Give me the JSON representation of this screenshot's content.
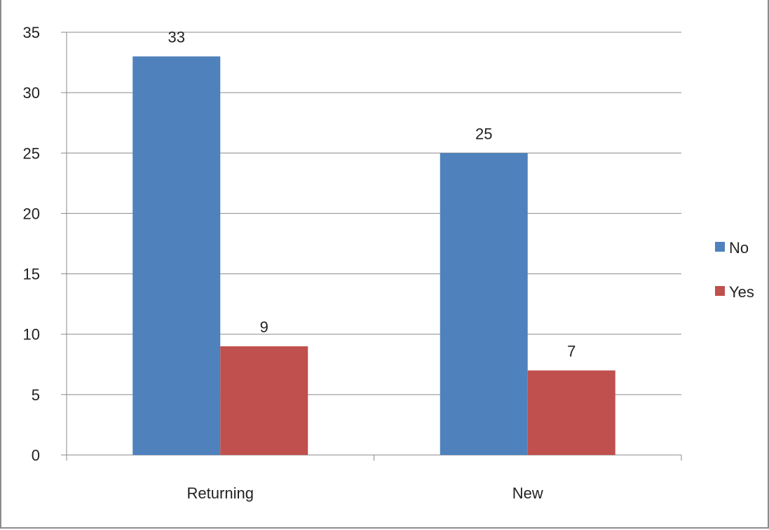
{
  "chart_data": {
    "type": "bar",
    "title": "",
    "xlabel": "",
    "ylabel": "",
    "categories": [
      "Returning",
      "New"
    ],
    "series": [
      {
        "name": "No",
        "values": [
          33,
          25
        ],
        "color": "#4F81BD"
      },
      {
        "name": "Yes",
        "values": [
          9,
          7
        ],
        "color": "#C0504D"
      }
    ],
    "ylim": [
      0,
      35
    ],
    "yticks": [
      0,
      5,
      10,
      15,
      20,
      25,
      30,
      35
    ],
    "grid": true,
    "legend_position": "right",
    "data_labels": true
  }
}
